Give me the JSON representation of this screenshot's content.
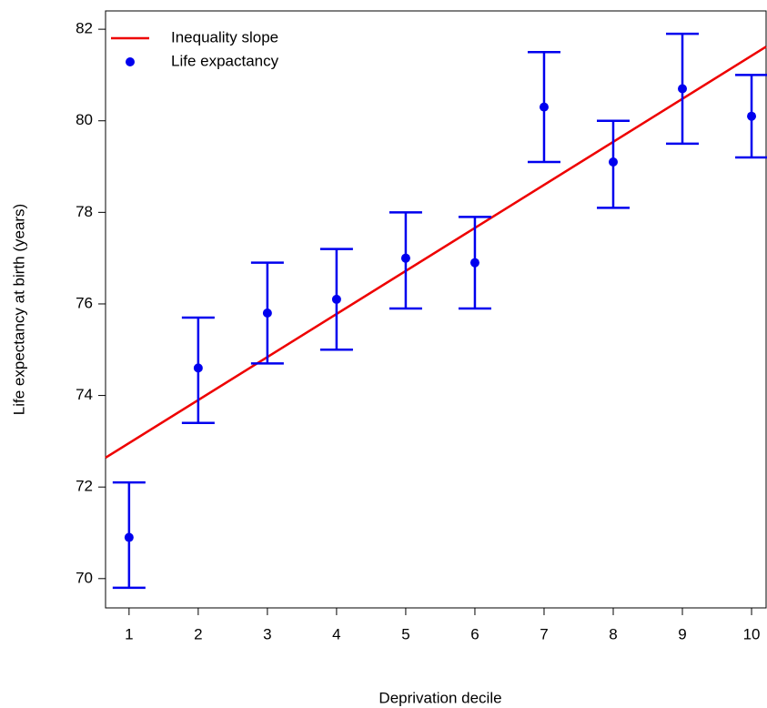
{
  "chart_data": {
    "type": "errorbar",
    "x_label": "Deprivation decile",
    "y_label": "Life expectancy at birth (years)",
    "x": [
      1,
      2,
      3,
      4,
      5,
      6,
      7,
      8,
      9,
      10
    ],
    "series": [
      {
        "name": "Life expactancy",
        "color": "#0000ee",
        "values": [
          70.9,
          74.6,
          75.8,
          76.1,
          77.0,
          76.9,
          80.3,
          79.1,
          80.7,
          80.1
        ],
        "lower": [
          69.8,
          73.4,
          74.7,
          75.0,
          75.9,
          75.9,
          79.1,
          78.1,
          79.5,
          79.2
        ],
        "upper": [
          72.1,
          75.7,
          76.9,
          77.2,
          78.0,
          77.9,
          81.5,
          80.0,
          81.9,
          81.0
        ]
      }
    ],
    "fit": {
      "name": "Inequality slope",
      "color": "#ee0000",
      "intercept": 72.02,
      "slope": 0.94
    },
    "xlim": [
      0.66,
      10.21
    ],
    "ylim": [
      69.36,
      82.4
    ],
    "xticks": [
      1,
      2,
      3,
      4,
      5,
      6,
      7,
      8,
      9,
      10
    ],
    "yticks": [
      70,
      72,
      74,
      76,
      78,
      80,
      82
    ],
    "legend": "top-left"
  }
}
